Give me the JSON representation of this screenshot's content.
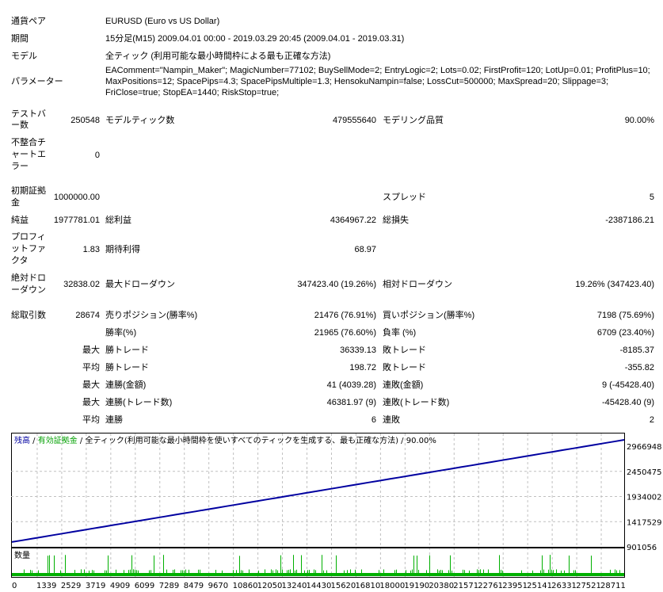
{
  "summary": {
    "symbol_label": "通貨ペア",
    "symbol": "EURUSD (Euro vs US Dollar)",
    "period_label": "期間",
    "period": "15分足(M15) 2009.04.01 00:00 - 2019.03.29 20:45 (2009.04.01 - 2019.03.31)",
    "model_label": "モデル",
    "model": "全ティック (利用可能な最小時間枠による最も正確な方法)",
    "params_label": "パラメーター",
    "params": "EAComment=\"Nampin_Maker\"; MagicNumber=77102; BuySellMode=2; EntryLogic=2; Lots=0.02; FirstProfit=120; LotUp=0.01; ProfitPlus=10; MaxPositions=12; SpacePips=4.3; SpacePipsMultiple=1.3; HensokuNampin=false; LossCut=500000; MaxSpread=20; Slippage=3; FriClose=true; StopEA=1440; RiskStop=true;",
    "bars_label": "テストバー数",
    "bars": "250548",
    "ticks_label": "モデルティック数",
    "ticks": "479555640",
    "quality_label": "モデリング品質",
    "quality": "90.00%",
    "mismatch_label": "不整合チャートエラー",
    "mismatch": "0",
    "deposit_label": "初期証拠金",
    "deposit": "1000000.00",
    "spread_label": "スプレッド",
    "spread": "5",
    "net_label": "純益",
    "net": "1977781.01",
    "gross_profit_label": "総利益",
    "gross_profit": "4364967.22",
    "gross_loss_label": "総損失",
    "gross_loss": "-2387186.21",
    "pf_label": "プロフィットファクタ",
    "pf": "1.83",
    "expected_label": "期待利得",
    "expected": "68.97",
    "abs_dd_label": "絶対ドローダウン",
    "abs_dd": "32838.02",
    "max_dd_label": "最大ドローダウン",
    "max_dd": "347423.40 (19.26%)",
    "rel_dd_label": "相対ドローダウン",
    "rel_dd": "19.26% (347423.40)",
    "trades_label": "総取引数",
    "trades": "28674",
    "short_label": "売りポジション(勝率%)",
    "short": "21476 (76.91%)",
    "long_label": "買いポジション(勝率%)",
    "long": "7198 (75.69%)",
    "win_label": "勝率(%)",
    "win": "21965 (76.60%)",
    "loss_label": "負率 (%)",
    "loss": "6709 (23.40%)",
    "max_label": "最大",
    "avg_label": "平均",
    "largest_win_label": "勝トレード",
    "largest_win": "36339.13",
    "largest_loss_label": "敗トレード",
    "largest_loss": "-8185.37",
    "avg_win_label": "勝トレード",
    "avg_win": "198.72",
    "avg_loss_label": "敗トレード",
    "avg_loss": "-355.82",
    "max_cons_win_label": "連勝(金額)",
    "max_cons_win": "41 (4039.28)",
    "max_cons_loss_label": "連敗(金額)",
    "max_cons_loss": "9 (-45428.40)",
    "max_cons_profit_label": "連勝(トレード数)",
    "max_cons_profit": "46381.97 (9)",
    "max_cons_lossamt_label": "連敗(トレード数)",
    "max_cons_lossamt": "-45428.40 (9)",
    "avg_cons_win_label": "連勝",
    "avg_cons_win": "6",
    "avg_cons_loss_label": "連敗",
    "avg_cons_loss": "2"
  },
  "chart_data": {
    "type": "line",
    "legend": {
      "balance": "残高",
      "equity": "有効証拠金",
      "model": "全ティック(利用可能な最小時間枠を使いすべてのティックを生成する、最も正確な方法)",
      "quality": "90.00%"
    },
    "volume_label": "数量",
    "y_ticks": [
      "2966948",
      "2450475",
      "1934002",
      "1417529",
      "901056"
    ],
    "y_range": [
      901056,
      2966948
    ],
    "x_ticks": [
      "0",
      "1339",
      "2529",
      "3719",
      "4909",
      "6099",
      "7289",
      "8479",
      "9670",
      "10860",
      "12050",
      "13240",
      "14430",
      "15620",
      "16810",
      "18000",
      "19190",
      "20380",
      "21571",
      "22761",
      "23951",
      "25141",
      "26331",
      "27521",
      "28711"
    ],
    "x_range": [
      0,
      28674
    ],
    "balance_start": 1000000,
    "balance_end": 2977781.01,
    "colors": {
      "balance": "#0000a0",
      "equity": "#00a000",
      "volume": "#00b000",
      "grid": "#c0c0c0"
    }
  }
}
